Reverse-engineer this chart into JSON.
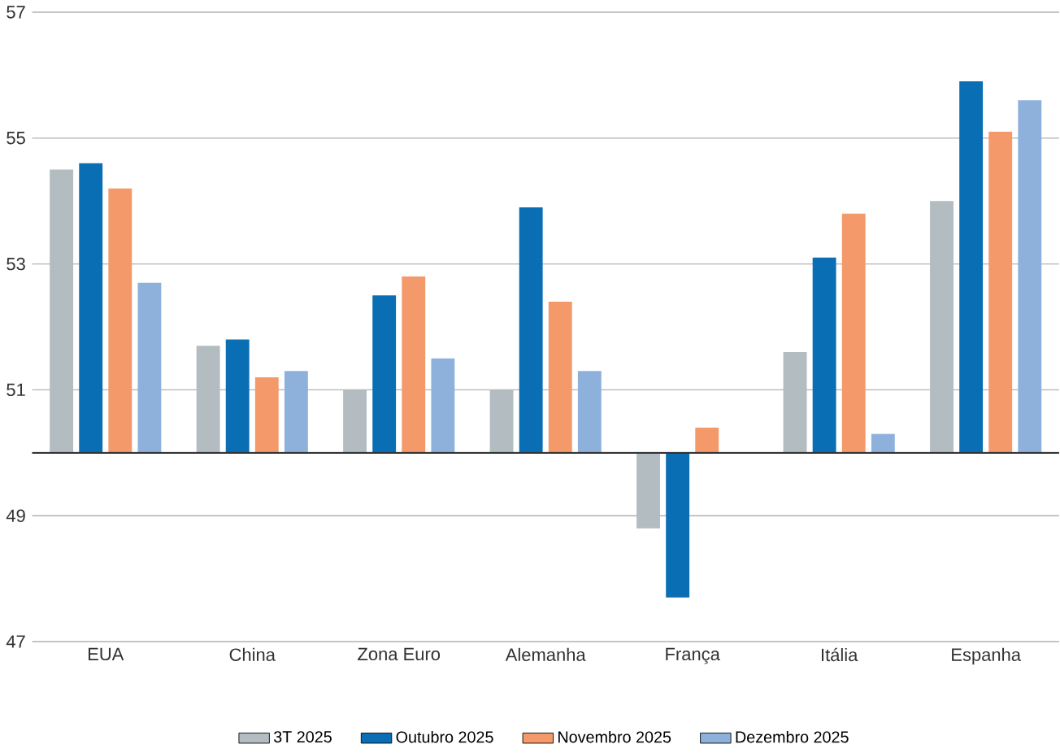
{
  "chart_data": {
    "type": "bar",
    "categories": [
      "EUA",
      "China",
      "Zona Euro",
      "Alemanha",
      "França",
      "Itália",
      "Espanha"
    ],
    "series": [
      {
        "name": "3T 2025",
        "color": "#b3bcc0",
        "base": [
          50,
          50,
          50,
          50,
          50,
          50,
          50
        ],
        "values": [
          4.5,
          1.7,
          1.0,
          1.0,
          -1.2,
          1.6,
          4.0
        ]
      },
      {
        "name": "Outubro 2025",
        "color": "#0a6eb4",
        "base": [
          50,
          50,
          50,
          50,
          50,
          50,
          50
        ],
        "values": [
          4.6,
          1.8,
          2.5,
          3.9,
          -2.3,
          3.1,
          5.9
        ]
      },
      {
        "name": "Novembro 2025",
        "color": "#f4996a",
        "base": [
          50,
          50,
          50,
          50,
          50,
          50,
          50
        ],
        "values": [
          4.2,
          1.2,
          2.8,
          2.4,
          0.4,
          3.8,
          5.1
        ]
      },
      {
        "name": "Dezembro 2025",
        "color": "#8eb1dc",
        "base": [
          50,
          50,
          50,
          50,
          null,
          50,
          50
        ],
        "values": [
          2.7,
          1.3,
          1.5,
          1.3,
          null,
          0.3,
          5.6
        ]
      }
    ],
    "ylim": [
      47,
      57
    ],
    "yticks": [
      47,
      49,
      51,
      53,
      55,
      57
    ],
    "grid": "y",
    "legend": "bottom",
    "ref_lines": [
      {
        "axis": "y",
        "value": 50,
        "color": "#333333"
      }
    ]
  }
}
